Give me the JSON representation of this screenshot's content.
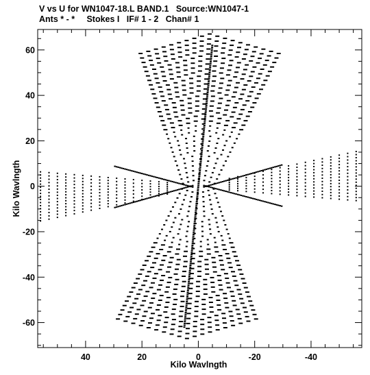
{
  "chart_data": {
    "type": "scatter",
    "title": "V vs U for WN1047-18.L BAND.1   Source:WN1047-1",
    "subtitle": "Ants * - *     Stokes I   IF# 1 - 2   Chan# 1",
    "xlabel": "Kilo Wavlngth",
    "ylabel": "Kilo Wavlngth",
    "xlim": [
      57,
      -58
    ],
    "ylim": [
      -71,
      69
    ],
    "x_ticks": [
      40,
      20,
      0,
      -20,
      -40
    ],
    "x_tick_labels": [
      "40",
      "20",
      "0",
      "-20",
      "-40"
    ],
    "y_ticks": [
      60,
      40,
      20,
      0,
      -20,
      -40,
      -60
    ],
    "y_tick_labels": [
      "60",
      "40",
      "20",
      "0",
      "-20",
      "-40",
      "-60"
    ],
    "grid": false,
    "arm_tips": [
      {
        "u": -5,
        "v": 62
      },
      {
        "u": 5,
        "v": -62
      },
      {
        "u": 28,
        "v": 10
      },
      {
        "u": -28,
        "v": -10
      },
      {
        "u": 26,
        "v": -8
      },
      {
        "u": -26,
        "v": 8
      }
    ],
    "extent": {
      "u_min": -55,
      "u_max": 56,
      "v_min": -67,
      "v_max": 67
    }
  }
}
